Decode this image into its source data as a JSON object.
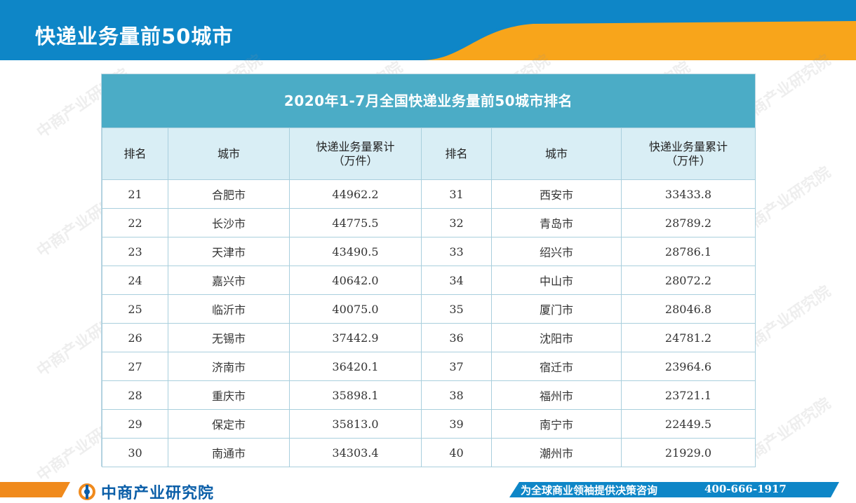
{
  "header": {
    "title": "快递业务量前50城市"
  },
  "table": {
    "caption": "2020年1-7月全国快递业务量前50城市排名",
    "columns": {
      "rank": "排名",
      "city": "城市",
      "volume_line1": "快递业务量累计",
      "volume_line2": "（万件）"
    },
    "rows": [
      {
        "left": {
          "rank": "21",
          "city": "合肥市",
          "volume": "44962.2"
        },
        "right": {
          "rank": "31",
          "city": "西安市",
          "volume": "33433.8"
        }
      },
      {
        "left": {
          "rank": "22",
          "city": "长沙市",
          "volume": "44775.5"
        },
        "right": {
          "rank": "32",
          "city": "青岛市",
          "volume": "28789.2"
        }
      },
      {
        "left": {
          "rank": "23",
          "city": "天津市",
          "volume": "43490.5"
        },
        "right": {
          "rank": "33",
          "city": "绍兴市",
          "volume": "28786.1"
        }
      },
      {
        "left": {
          "rank": "24",
          "city": "嘉兴市",
          "volume": "40642.0"
        },
        "right": {
          "rank": "34",
          "city": "中山市",
          "volume": "28072.2"
        }
      },
      {
        "left": {
          "rank": "25",
          "city": "临沂市",
          "volume": "40075.0"
        },
        "right": {
          "rank": "35",
          "city": "厦门市",
          "volume": "28046.8"
        }
      },
      {
        "left": {
          "rank": "26",
          "city": "无锡市",
          "volume": "37442.9"
        },
        "right": {
          "rank": "36",
          "city": "沈阳市",
          "volume": "24781.2"
        }
      },
      {
        "left": {
          "rank": "27",
          "city": "济南市",
          "volume": "36420.1"
        },
        "right": {
          "rank": "37",
          "city": "宿迁市",
          "volume": "23964.6"
        }
      },
      {
        "left": {
          "rank": "28",
          "city": "重庆市",
          "volume": "35898.1"
        },
        "right": {
          "rank": "38",
          "city": "福州市",
          "volume": "23721.1"
        }
      },
      {
        "left": {
          "rank": "29",
          "city": "保定市",
          "volume": "35813.0"
        },
        "right": {
          "rank": "39",
          "city": "南宁市",
          "volume": "22449.5"
        }
      },
      {
        "left": {
          "rank": "30",
          "city": "南通市",
          "volume": "34303.4"
        },
        "right": {
          "rank": "40",
          "city": "潮州市",
          "volume": "21929.0"
        }
      }
    ]
  },
  "watermark": {
    "text": "中商产业研究院"
  },
  "footer": {
    "logo_text": "中商产业研究院",
    "logo_icon": "askci-logo-icon",
    "slogan": "为全球商业领袖提供决策咨询",
    "phone": "400-666-1917"
  },
  "colors": {
    "header_blue": "#0e86c7",
    "header_orange": "#f8a51b",
    "caption_bg": "#4bacc6",
    "column_header_bg": "#d9eef5",
    "footer_blue": "#0e86c7",
    "footer_orange": "#f08a1c"
  }
}
